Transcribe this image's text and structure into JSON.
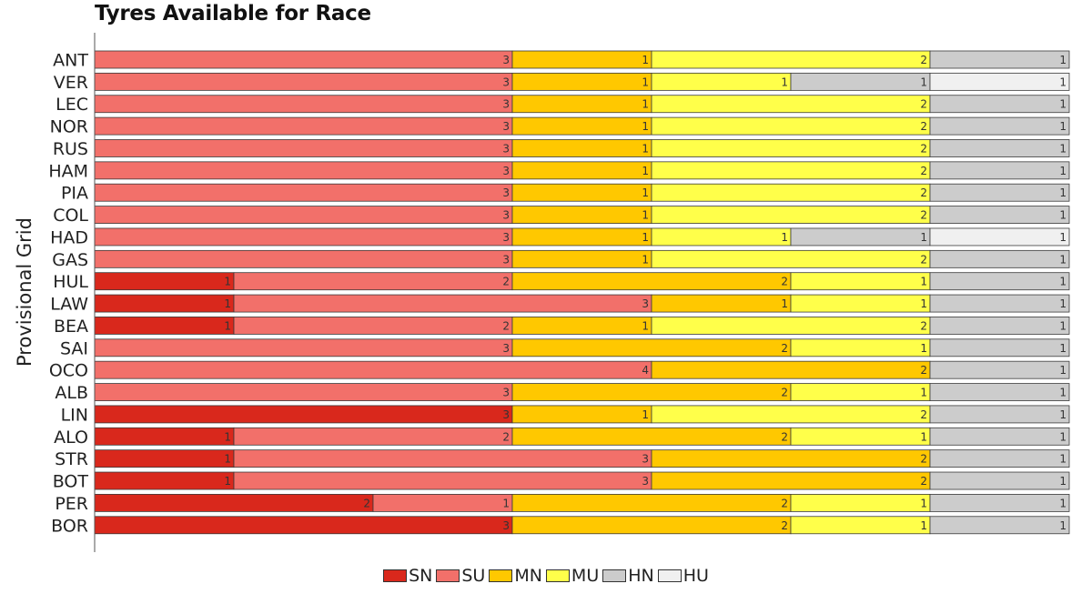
{
  "chart_data": {
    "type": "bar",
    "orientation": "horizontal",
    "stacked": true,
    "title": "Tyres Available for Race",
    "ylabel": "Provisional Grid",
    "xlabel": "",
    "xlim": [
      0,
      7
    ],
    "grid": false,
    "legend_position": "bottom",
    "categories": [
      "ANT",
      "VER",
      "LEC",
      "NOR",
      "RUS",
      "HAM",
      "PIA",
      "COL",
      "HAD",
      "GAS",
      "HUL",
      "LAW",
      "BEA",
      "SAI",
      "OCO",
      "ALB",
      "LIN",
      "ALO",
      "STR",
      "BOT",
      "PER",
      "BOR"
    ],
    "series": [
      {
        "name": "SN",
        "color": "#d9281c",
        "values": [
          0,
          0,
          0,
          0,
          0,
          0,
          0,
          0,
          0,
          0,
          1,
          1,
          1,
          0,
          0,
          0,
          3,
          1,
          1,
          1,
          2,
          3
        ]
      },
      {
        "name": "SU",
        "color": "#f2706a",
        "values": [
          3,
          3,
          3,
          3,
          3,
          3,
          3,
          3,
          3,
          3,
          2,
          3,
          2,
          3,
          4,
          3,
          0,
          2,
          3,
          3,
          1,
          0
        ]
      },
      {
        "name": "MN",
        "color": "#ffc800",
        "values": [
          1,
          1,
          1,
          1,
          1,
          1,
          1,
          1,
          1,
          1,
          2,
          1,
          1,
          2,
          2,
          2,
          1,
          2,
          2,
          2,
          2,
          2
        ]
      },
      {
        "name": "MU",
        "color": "#ffff4a",
        "values": [
          2,
          1,
          2,
          2,
          2,
          2,
          2,
          2,
          1,
          2,
          1,
          1,
          2,
          1,
          0,
          1,
          2,
          1,
          0,
          0,
          1,
          1
        ]
      },
      {
        "name": "HN",
        "color": "#cccccc",
        "values": [
          1,
          1,
          1,
          1,
          1,
          1,
          1,
          1,
          1,
          1,
          1,
          1,
          1,
          1,
          1,
          1,
          1,
          1,
          1,
          1,
          1,
          1
        ]
      },
      {
        "name": "HU",
        "color": "#f0f0f0",
        "values": [
          0,
          1,
          0,
          0,
          0,
          0,
          0,
          0,
          1,
          0,
          0,
          0,
          0,
          0,
          0,
          0,
          0,
          0,
          0,
          0,
          0,
          0
        ]
      }
    ]
  }
}
